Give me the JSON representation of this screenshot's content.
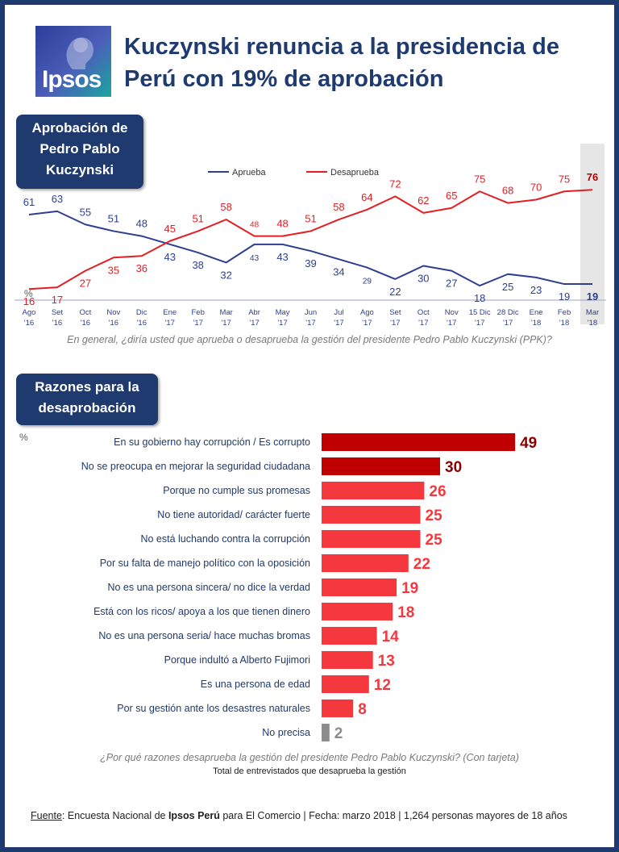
{
  "header": {
    "title": "Kuczynski renuncia a la presidencia de Perú con 19% de aprobación",
    "logo_text": "Ipsos"
  },
  "section1": {
    "label": "Aprobación de\nPedro Pablo\nKuczynski"
  },
  "section2": {
    "label": "Razones para la\ndesaprobación"
  },
  "colors": {
    "aprueba": "#2e3f8f",
    "desaprueba": "#e31e24",
    "bar_dark": "#c00000",
    "bar_light": "#f4383d",
    "bar_grey": "#8c8c8c",
    "navy": "#1f3a6e"
  },
  "chart_data": [
    {
      "type": "line",
      "categories": [
        "Ago '16",
        "Set '16",
        "Oct '16",
        "Nov '16",
        "Dic '16",
        "Ene '17",
        "Feb '17",
        "Mar '17",
        "Abr '17",
        "May '17",
        "Jun '17",
        "Jul '17",
        "Ago '17",
        "Set '17",
        "Oct '17",
        "Nov '17",
        "15 Dic '17",
        "28 Dic '17",
        "Ene '18",
        "Feb '18",
        "Mar '18"
      ],
      "series": [
        {
          "name": "Aprueba",
          "values": [
            61,
            63,
            55,
            51,
            48,
            43,
            38,
            32,
            43,
            43,
            39,
            34,
            29,
            22,
            30,
            27,
            18,
            25,
            23,
            19,
            19
          ]
        },
        {
          "name": "Desaprueba",
          "values": [
            16,
            17,
            27,
            35,
            36,
            45,
            51,
            58,
            48,
            48,
            51,
            58,
            64,
            72,
            62,
            65,
            75,
            68,
            70,
            75,
            76
          ]
        }
      ],
      "unit": "%",
      "legend": "top",
      "highlight": "Mar '18"
    },
    {
      "type": "bar",
      "orientation": "horizontal",
      "unit": "%",
      "categories": [
        "En su gobierno hay corrupción / Es corrupto",
        "No se preocupa en mejorar la seguridad ciudadana",
        "Porque no cumple sus promesas",
        "No tiene autoridad/ carácter fuerte",
        "No está luchando contra la corrupción",
        "Por su falta de manejo político con la oposición",
        "No es una persona sincera/ no dice la verdad",
        "Está con los ricos/ apoya a los que tienen dinero",
        "No es una persona seria/ hace muchas bromas",
        "Porque indultó a Alberto Fujimori",
        "Es una persona de edad",
        "Por su gestión ante los desastres naturales",
        "No precisa"
      ],
      "values": [
        49,
        30,
        26,
        25,
        25,
        22,
        19,
        18,
        14,
        13,
        12,
        8,
        2
      ]
    }
  ],
  "questions": {
    "q1": "En general, ¿diría usted que aprueba o desaprueba la gestión del presidente Pedro Pablo Kuczynski (PPK)?",
    "q2": "¿Por qué razones desaprueba la gestión del presidente Pedro Pablo Kuczynski? (Con tarjeta)",
    "q2_sub": "Total de entrevistados que desaprueba la gestión"
  },
  "footer": {
    "source_label": "Fuente",
    "text_a": ": Encuesta Nacional de ",
    "brand": "Ipsos Perú",
    "text_b": " para El Comercio | Fecha: marzo 2018  |  1,264  personas mayores de 18 años"
  }
}
